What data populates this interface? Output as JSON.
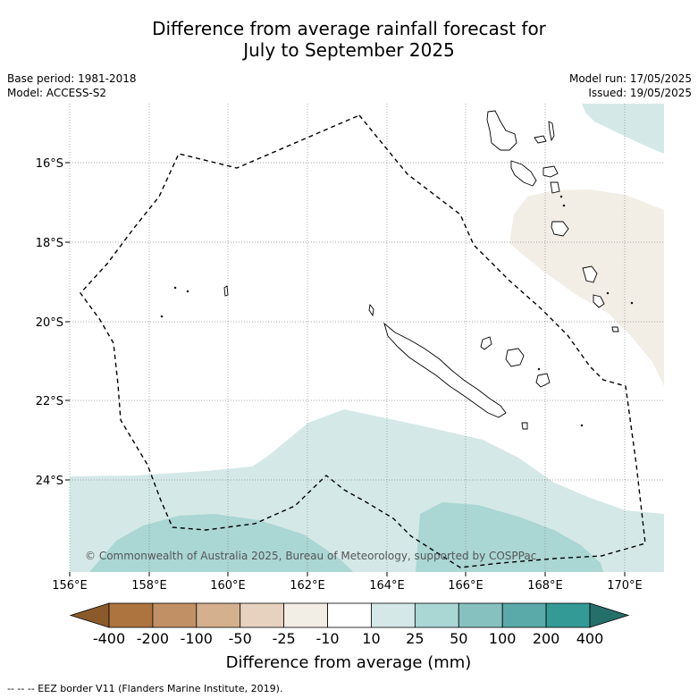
{
  "title_line1": "Difference from average rainfall forecast for",
  "title_line2": "July to September 2025",
  "base_period": "Base period: 1981-2018",
  "model": "Model: ACCESS-S2",
  "model_run": "Model run: 17/05/2025",
  "issued": "Issued: 19/05/2025",
  "copyright": "© Commonwealth of Australia 2025, Bureau of Meteorology, supported by COSPPac",
  "lat_labels": [
    "16°S",
    "18°S",
    "20°S",
    "22°S",
    "24°S"
  ],
  "lon_labels": [
    "156°E",
    "158°E",
    "160°E",
    "162°E",
    "164°E",
    "166°E",
    "168°E",
    "170°E"
  ],
  "colorbar": {
    "title": "Difference from average (mm)",
    "labels": [
      "-400",
      "-200",
      "-100",
      "-50",
      "-25",
      "-10",
      "10",
      "25",
      "50",
      "100",
      "200",
      "400"
    ],
    "colors": [
      "#8b5a2b",
      "#ad7440",
      "#c19065",
      "#d5b08e",
      "#e7d2bf",
      "#f2eee6",
      "#ffffff",
      "#d4e9e7",
      "#aad6d4",
      "#86c1c0",
      "#5aaaa9",
      "#349a95",
      "#256f6b"
    ]
  },
  "footer": "--  --  -- EEZ border V11 (Flanders Marine Institute, 2019)."
}
